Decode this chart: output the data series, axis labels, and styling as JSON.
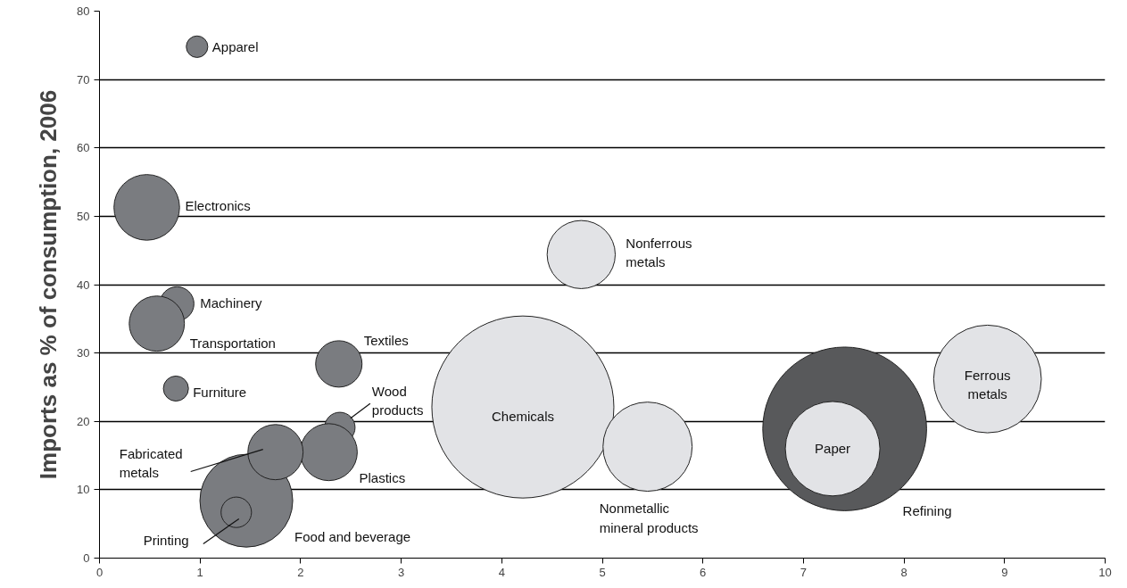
{
  "chart_data": {
    "type": "bubble",
    "ylabel": "Imports as % of consumption, 2006",
    "xlim": [
      0,
      10
    ],
    "xticks": [
      0,
      1,
      2,
      3,
      4,
      5,
      6,
      7,
      8,
      9,
      10
    ],
    "ylim": [
      0,
      80
    ],
    "yticks": [
      0,
      10,
      20,
      30,
      40,
      50,
      60,
      70,
      80
    ],
    "grid": "y",
    "series": [
      {
        "name": "Apparel",
        "color": "#7a7c80",
        "x": [
          0.97
        ],
        "values": [
          74.8
        ],
        "sizes": [
          0.014
        ]
      },
      {
        "name": "Electronics",
        "color": "#7a7c80",
        "x": [
          0.47
        ],
        "values": [
          51.3
        ],
        "sizes": [
          0.13
        ]
      },
      {
        "name": "Machinery",
        "color": "#7a7c80",
        "x": [
          0.77
        ],
        "values": [
          37.2
        ],
        "sizes": [
          0.035
        ]
      },
      {
        "name": "Transportation",
        "color": "#7a7c80",
        "x": [
          0.57
        ],
        "values": [
          34.3
        ],
        "sizes": [
          0.092
        ]
      },
      {
        "name": "Furniture",
        "color": "#7a7c80",
        "x": [
          0.76
        ],
        "values": [
          24.8
        ],
        "sizes": [
          0.019
        ]
      },
      {
        "name": "Textiles",
        "color": "#7a7c80",
        "x": [
          2.38
        ],
        "values": [
          28.4
        ],
        "sizes": [
          0.065
        ]
      },
      {
        "name": "Wood products",
        "color": "#7a7c80",
        "x": [
          2.39
        ],
        "values": [
          19.1
        ],
        "sizes": [
          0.028
        ]
      },
      {
        "name": "Plastics",
        "color": "#7a7c80",
        "x": [
          2.28
        ],
        "values": [
          15.5
        ],
        "sizes": [
          0.098
        ]
      },
      {
        "name": "Food and beverage",
        "color": "#7a7c80",
        "x": [
          1.46
        ],
        "values": [
          8.4
        ],
        "sizes": [
          0.26
        ]
      },
      {
        "name": "Fabricated metals",
        "color": "#7a7c80",
        "x": [
          1.75
        ],
        "values": [
          15.5
        ],
        "sizes": [
          0.092
        ]
      },
      {
        "name": "Printing",
        "color": "#7a7c80",
        "x": [
          1.36
        ],
        "values": [
          6.7
        ],
        "sizes": [
          0.028
        ]
      },
      {
        "name": "Chemicals",
        "color": "#e2e3e6",
        "x": [
          4.21
        ],
        "values": [
          22.1
        ],
        "sizes": [
          1
        ]
      },
      {
        "name": "Nonferrous metals",
        "color": "#e2e3e6",
        "x": [
          4.79
        ],
        "values": [
          44.4
        ],
        "sizes": [
          0.14
        ]
      },
      {
        "name": "Nonmetallic mineral products",
        "color": "#e2e3e6",
        "x": [
          5.45
        ],
        "values": [
          16.3
        ],
        "sizes": [
          0.24
        ]
      },
      {
        "name": "Refining",
        "color": "#58595b",
        "x": [
          7.41
        ],
        "values": [
          18.9
        ],
        "sizes": [
          0.81
        ]
      },
      {
        "name": "Paper",
        "color": "#e2e3e6",
        "x": [
          7.29
        ],
        "values": [
          16.0
        ],
        "sizes": [
          0.27
        ]
      },
      {
        "name": "Ferrous metals",
        "color": "#e2e3e6",
        "x": [
          8.83
        ],
        "values": [
          26.2
        ],
        "sizes": [
          0.35
        ]
      }
    ]
  }
}
